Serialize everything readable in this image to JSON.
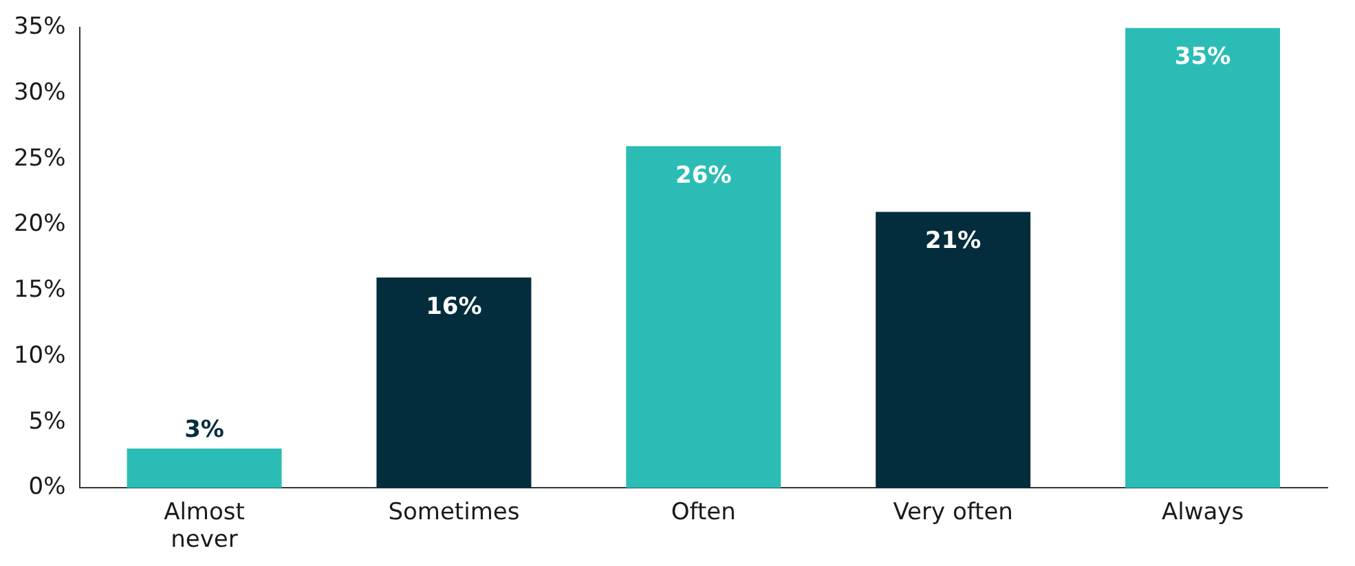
{
  "chart_data": {
    "type": "bar",
    "categories": [
      "Almost never",
      "Sometimes",
      "Often",
      "Very often",
      "Always"
    ],
    "values": [
      3,
      16,
      26,
      21,
      35
    ],
    "colors": [
      "#2bbdb5",
      "#032d3c",
      "#2bbdb5",
      "#032d3c",
      "#2bbdb5"
    ],
    "ylim": [
      0,
      35
    ],
    "yticks": [
      {
        "value": 0,
        "label": "0%"
      },
      {
        "value": 5,
        "label": "5%"
      },
      {
        "value": 10,
        "label": "10%"
      },
      {
        "value": 15,
        "label": "15%"
      },
      {
        "value": 20,
        "label": "20%"
      },
      {
        "value": 25,
        "label": "25%"
      },
      {
        "value": 30,
        "label": "30%"
      },
      {
        "value": 35,
        "label": "35%"
      }
    ],
    "value_labels": [
      "3%",
      "16%",
      "26%",
      "21%",
      "35%"
    ],
    "grid": false,
    "legend": false
  }
}
